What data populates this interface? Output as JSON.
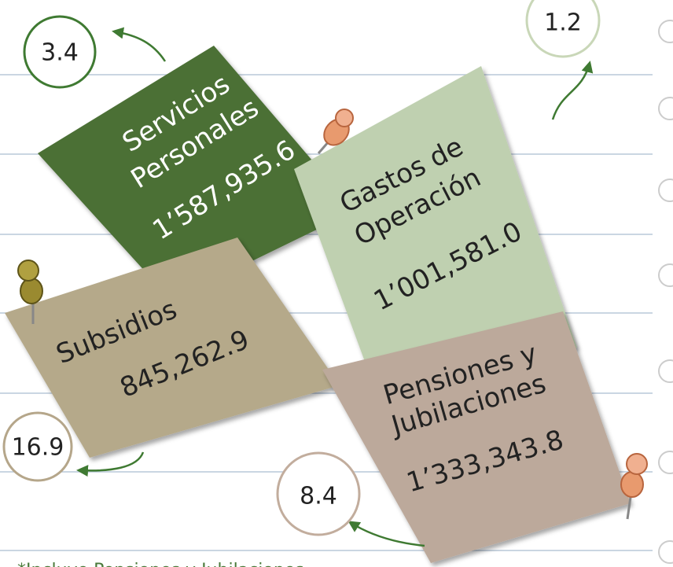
{
  "notes": [
    {
      "title_lines": [
        "Servicios",
        "Personales"
      ],
      "amount": "1’587,935.6",
      "percent": "3.4"
    },
    {
      "title_lines": [
        "Gastos de",
        "Operación"
      ],
      "amount": "1’001,581.0",
      "percent": "1.2"
    },
    {
      "title_lines": [
        "Subsidios"
      ],
      "amount": "845,262.9",
      "percent": "16.9"
    },
    {
      "title_lines": [
        "Pensiones y",
        "Jubilaciones"
      ],
      "amount": "1’333,343.8",
      "percent": "8.4"
    }
  ],
  "footnote": "*Incluye Pensiones y Jubilaciones"
}
